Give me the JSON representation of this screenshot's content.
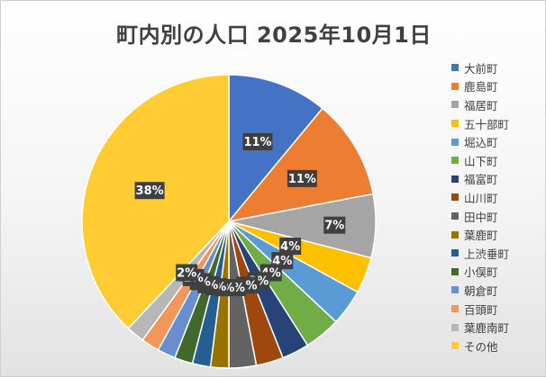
{
  "chart_data": {
    "type": "pie",
    "title": "町内別の人口 2025年10月1日",
    "slices": [
      {
        "name": "大前町",
        "value": 11,
        "label": "11%",
        "color": "#4472C4"
      },
      {
        "name": "鹿島町",
        "value": 11,
        "label": "11%",
        "color": "#ED7D31"
      },
      {
        "name": "福居町",
        "value": 7,
        "label": "7%",
        "color": "#A5A5A5"
      },
      {
        "name": "五十部町",
        "value": 4,
        "label": "4%",
        "color": "#FFC000"
      },
      {
        "name": "堀込町",
        "value": 4,
        "label": "4%",
        "color": "#5B9BD5"
      },
      {
        "name": "山下町",
        "value": 4,
        "label": "4%",
        "color": "#70AD47"
      },
      {
        "name": "福富町",
        "value": 3,
        "label": "3%",
        "color": "#264478"
      },
      {
        "name": "山川町",
        "value": 3,
        "label": "3%",
        "color": "#9E480E"
      },
      {
        "name": "田中町",
        "value": 3,
        "label": "3%",
        "color": "#636363"
      },
      {
        "name": "葉鹿町",
        "value": 2,
        "label": "2%",
        "color": "#997300"
      },
      {
        "name": "上渋垂町",
        "value": 2,
        "label": "2%",
        "color": "#255E91"
      },
      {
        "name": "小俣町",
        "value": 2,
        "label": "2%",
        "color": "#43682B"
      },
      {
        "name": "朝倉町",
        "value": 2,
        "label": "2%",
        "color": "#698ED0"
      },
      {
        "name": "百頭町",
        "value": 2,
        "label": "2%",
        "color": "#F1975A"
      },
      {
        "name": "葉鹿南町",
        "value": 2,
        "label": "2%",
        "color": "#B7B7B7"
      },
      {
        "name": "その他",
        "value": 38,
        "label": "38%",
        "color": "#FFCD33"
      }
    ],
    "legend_position": "right"
  }
}
